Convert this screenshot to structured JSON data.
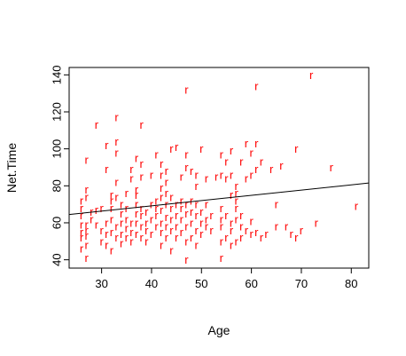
{
  "chart_data": {
    "type": "scatter",
    "title": "",
    "xlabel": "Age",
    "ylabel": "Net.Time",
    "xlim": [
      23.5,
      83.5
    ],
    "ylim": [
      35.5,
      144
    ],
    "x_ticks": [
      30,
      40,
      50,
      60,
      70,
      80
    ],
    "y_ticks": [
      40,
      60,
      80,
      100,
      120,
      140
    ],
    "grid": false,
    "legend": "none",
    "marker": "r",
    "point_color": "#ff0000",
    "line_color": "#000000",
    "regression_line": {
      "x": [
        23.5,
        83.5
      ],
      "y": [
        64.5,
        81.5
      ]
    },
    "points": [
      {
        "x": 26,
        "y": 46
      },
      {
        "x": 26,
        "y": 52
      },
      {
        "x": 26,
        "y": 55
      },
      {
        "x": 26,
        "y": 59
      },
      {
        "x": 26,
        "y": 64
      },
      {
        "x": 26,
        "y": 68
      },
      {
        "x": 26,
        "y": 72
      },
      {
        "x": 27,
        "y": 41
      },
      {
        "x": 27,
        "y": 48
      },
      {
        "x": 27,
        "y": 53
      },
      {
        "x": 27,
        "y": 56
      },
      {
        "x": 27,
        "y": 59
      },
      {
        "x": 27,
        "y": 74
      },
      {
        "x": 27,
        "y": 78
      },
      {
        "x": 27,
        "y": 94
      },
      {
        "x": 28,
        "y": 62
      },
      {
        "x": 28,
        "y": 66
      },
      {
        "x": 29,
        "y": 59
      },
      {
        "x": 29,
        "y": 67
      },
      {
        "x": 29,
        "y": 113
      },
      {
        "x": 30,
        "y": 50
      },
      {
        "x": 30,
        "y": 56
      },
      {
        "x": 30,
        "y": 68
      },
      {
        "x": 31,
        "y": 48
      },
      {
        "x": 31,
        "y": 54
      },
      {
        "x": 31,
        "y": 60
      },
      {
        "x": 31,
        "y": 89
      },
      {
        "x": 31,
        "y": 102
      },
      {
        "x": 32,
        "y": 45
      },
      {
        "x": 32,
        "y": 55
      },
      {
        "x": 32,
        "y": 62
      },
      {
        "x": 32,
        "y": 68
      },
      {
        "x": 32,
        "y": 72
      },
      {
        "x": 32,
        "y": 75
      },
      {
        "x": 33,
        "y": 52
      },
      {
        "x": 33,
        "y": 58
      },
      {
        "x": 33,
        "y": 74
      },
      {
        "x": 33,
        "y": 82
      },
      {
        "x": 33,
        "y": 98
      },
      {
        "x": 33,
        "y": 104
      },
      {
        "x": 33,
        "y": 117
      },
      {
        "x": 34,
        "y": 49
      },
      {
        "x": 34,
        "y": 54
      },
      {
        "x": 34,
        "y": 60
      },
      {
        "x": 34,
        "y": 65
      },
      {
        "x": 34,
        "y": 70
      },
      {
        "x": 35,
        "y": 52
      },
      {
        "x": 35,
        "y": 57
      },
      {
        "x": 35,
        "y": 62
      },
      {
        "x": 35,
        "y": 68
      },
      {
        "x": 35,
        "y": 76
      },
      {
        "x": 36,
        "y": 50
      },
      {
        "x": 36,
        "y": 55
      },
      {
        "x": 36,
        "y": 60
      },
      {
        "x": 36,
        "y": 84
      },
      {
        "x": 36,
        "y": 89
      },
      {
        "x": 37,
        "y": 54
      },
      {
        "x": 37,
        "y": 60
      },
      {
        "x": 37,
        "y": 65
      },
      {
        "x": 37,
        "y": 70
      },
      {
        "x": 37,
        "y": 75
      },
      {
        "x": 37,
        "y": 78
      },
      {
        "x": 37,
        "y": 95
      },
      {
        "x": 38,
        "y": 52
      },
      {
        "x": 38,
        "y": 58
      },
      {
        "x": 38,
        "y": 64
      },
      {
        "x": 38,
        "y": 68
      },
      {
        "x": 38,
        "y": 85
      },
      {
        "x": 38,
        "y": 92
      },
      {
        "x": 38,
        "y": 113
      },
      {
        "x": 39,
        "y": 50
      },
      {
        "x": 39,
        "y": 56
      },
      {
        "x": 39,
        "y": 60
      },
      {
        "x": 39,
        "y": 66
      },
      {
        "x": 40,
        "y": 54
      },
      {
        "x": 40,
        "y": 62
      },
      {
        "x": 40,
        "y": 70
      },
      {
        "x": 40,
        "y": 86
      },
      {
        "x": 41,
        "y": 58
      },
      {
        "x": 41,
        "y": 64
      },
      {
        "x": 41,
        "y": 68
      },
      {
        "x": 41,
        "y": 72
      },
      {
        "x": 41,
        "y": 97
      },
      {
        "x": 42,
        "y": 48
      },
      {
        "x": 42,
        "y": 55
      },
      {
        "x": 42,
        "y": 60
      },
      {
        "x": 42,
        "y": 67
      },
      {
        "x": 42,
        "y": 74
      },
      {
        "x": 42,
        "y": 79
      },
      {
        "x": 42,
        "y": 86
      },
      {
        "x": 42,
        "y": 92
      },
      {
        "x": 43,
        "y": 52
      },
      {
        "x": 43,
        "y": 58
      },
      {
        "x": 43,
        "y": 63
      },
      {
        "x": 43,
        "y": 70
      },
      {
        "x": 43,
        "y": 76
      },
      {
        "x": 43,
        "y": 82
      },
      {
        "x": 43,
        "y": 88
      },
      {
        "x": 44,
        "y": 45
      },
      {
        "x": 44,
        "y": 56
      },
      {
        "x": 44,
        "y": 62
      },
      {
        "x": 44,
        "y": 68
      },
      {
        "x": 44,
        "y": 74
      },
      {
        "x": 44,
        "y": 100
      },
      {
        "x": 45,
        "y": 52
      },
      {
        "x": 45,
        "y": 58
      },
      {
        "x": 45,
        "y": 64
      },
      {
        "x": 45,
        "y": 70
      },
      {
        "x": 45,
        "y": 101
      },
      {
        "x": 46,
        "y": 55
      },
      {
        "x": 46,
        "y": 62
      },
      {
        "x": 46,
        "y": 68
      },
      {
        "x": 46,
        "y": 72
      },
      {
        "x": 46,
        "y": 85
      },
      {
        "x": 47,
        "y": 40
      },
      {
        "x": 47,
        "y": 50
      },
      {
        "x": 47,
        "y": 58
      },
      {
        "x": 47,
        "y": 65
      },
      {
        "x": 47,
        "y": 70
      },
      {
        "x": 47,
        "y": 90
      },
      {
        "x": 47,
        "y": 97
      },
      {
        "x": 47,
        "y": 132
      },
      {
        "x": 48,
        "y": 52
      },
      {
        "x": 48,
        "y": 60
      },
      {
        "x": 48,
        "y": 66
      },
      {
        "x": 48,
        "y": 72
      },
      {
        "x": 48,
        "y": 88
      },
      {
        "x": 49,
        "y": 48
      },
      {
        "x": 49,
        "y": 56
      },
      {
        "x": 49,
        "y": 64
      },
      {
        "x": 49,
        "y": 70
      },
      {
        "x": 49,
        "y": 80
      },
      {
        "x": 49,
        "y": 86
      },
      {
        "x": 50,
        "y": 54
      },
      {
        "x": 50,
        "y": 60
      },
      {
        "x": 50,
        "y": 66
      },
      {
        "x": 50,
        "y": 100
      },
      {
        "x": 51,
        "y": 58
      },
      {
        "x": 51,
        "y": 62
      },
      {
        "x": 51,
        "y": 70
      },
      {
        "x": 51,
        "y": 84
      },
      {
        "x": 52,
        "y": 56
      },
      {
        "x": 52,
        "y": 64
      },
      {
        "x": 53,
        "y": 85
      },
      {
        "x": 54,
        "y": 41
      },
      {
        "x": 54,
        "y": 50
      },
      {
        "x": 54,
        "y": 58
      },
      {
        "x": 54,
        "y": 62
      },
      {
        "x": 54,
        "y": 68
      },
      {
        "x": 54,
        "y": 86
      },
      {
        "x": 54,
        "y": 97
      },
      {
        "x": 55,
        "y": 52
      },
      {
        "x": 55,
        "y": 64
      },
      {
        "x": 55,
        "y": 84
      },
      {
        "x": 55,
        "y": 93
      },
      {
        "x": 56,
        "y": 48
      },
      {
        "x": 56,
        "y": 56
      },
      {
        "x": 56,
        "y": 60
      },
      {
        "x": 56,
        "y": 75
      },
      {
        "x": 56,
        "y": 86
      },
      {
        "x": 56,
        "y": 99
      },
      {
        "x": 57,
        "y": 50
      },
      {
        "x": 57,
        "y": 62
      },
      {
        "x": 57,
        "y": 68
      },
      {
        "x": 57,
        "y": 72
      },
      {
        "x": 57,
        "y": 76
      },
      {
        "x": 57,
        "y": 80
      },
      {
        "x": 58,
        "y": 52
      },
      {
        "x": 58,
        "y": 58
      },
      {
        "x": 58,
        "y": 64
      },
      {
        "x": 58,
        "y": 93
      },
      {
        "x": 59,
        "y": 56
      },
      {
        "x": 59,
        "y": 84
      },
      {
        "x": 59,
        "y": 103
      },
      {
        "x": 60,
        "y": 54
      },
      {
        "x": 60,
        "y": 61
      },
      {
        "x": 60,
        "y": 86
      },
      {
        "x": 60,
        "y": 98
      },
      {
        "x": 61,
        "y": 55
      },
      {
        "x": 61,
        "y": 89
      },
      {
        "x": 61,
        "y": 103
      },
      {
        "x": 61,
        "y": 134
      },
      {
        "x": 62,
        "y": 52
      },
      {
        "x": 62,
        "y": 93
      },
      {
        "x": 63,
        "y": 54
      },
      {
        "x": 64,
        "y": 89
      },
      {
        "x": 65,
        "y": 58
      },
      {
        "x": 65,
        "y": 70
      },
      {
        "x": 66,
        "y": 91
      },
      {
        "x": 67,
        "y": 58
      },
      {
        "x": 68,
        "y": 54
      },
      {
        "x": 69,
        "y": 52
      },
      {
        "x": 69,
        "y": 100
      },
      {
        "x": 70,
        "y": 56
      },
      {
        "x": 72,
        "y": 140
      },
      {
        "x": 73,
        "y": 60
      },
      {
        "x": 76,
        "y": 90
      },
      {
        "x": 81,
        "y": 69
      }
    ]
  }
}
